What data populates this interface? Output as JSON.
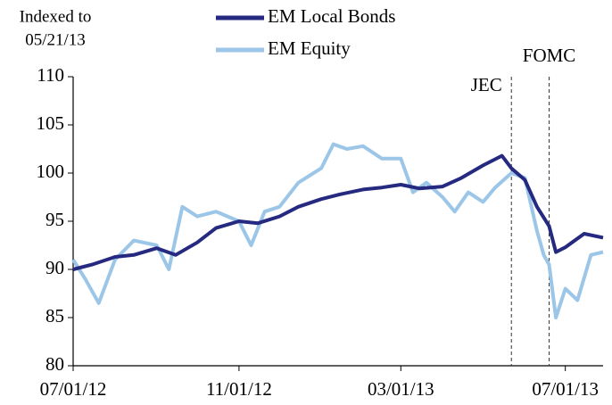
{
  "chart_data": {
    "type": "line",
    "ylabel": [
      "Indexed to",
      "05/21/13"
    ],
    "xlim": [
      "07/01/12",
      "07/29/13"
    ],
    "xticks": [
      "07/01/12",
      "11/01/12",
      "03/01/13",
      "07/01/13"
    ],
    "ylim": [
      80,
      110
    ],
    "yticks": [
      80,
      85,
      90,
      95,
      100,
      105,
      110
    ],
    "legend": "top",
    "annotations": [
      {
        "text": "JEC",
        "x": "05/22/13"
      },
      {
        "text": "FOMC",
        "x": "06/19/13"
      }
    ],
    "series": [
      {
        "name": "EM Local Bonds",
        "color": "#252a80",
        "x": [
          "07/01/12",
          "07/15/12",
          "08/01/12",
          "08/15/12",
          "09/01/12",
          "09/15/12",
          "10/01/12",
          "10/15/12",
          "11/01/12",
          "11/15/12",
          "12/01/12",
          "12/15/12",
          "01/01/13",
          "01/15/13",
          "02/01/13",
          "02/15/13",
          "03/01/13",
          "03/15/13",
          "04/01/13",
          "04/15/13",
          "05/01/13",
          "05/15/13",
          "05/22/13",
          "06/01/13",
          "06/10/13",
          "06/19/13",
          "06/24/13",
          "07/01/13",
          "07/15/13",
          "07/29/13"
        ],
        "values": [
          90,
          90.5,
          91.3,
          91.5,
          92.2,
          91.5,
          92.8,
          94.3,
          95,
          94.8,
          95.5,
          96.5,
          97.3,
          97.8,
          98.3,
          98.5,
          98.8,
          98.4,
          98.6,
          99.5,
          100.8,
          101.8,
          100.5,
          99.3,
          96.5,
          94.5,
          91.8,
          92.3,
          93.7,
          93.3
        ]
      },
      {
        "name": "EM Equity",
        "color": "#9cc6e8",
        "x": [
          "07/01/12",
          "07/10/12",
          "07/20/12",
          "08/01/12",
          "08/15/12",
          "09/01/12",
          "09/10/12",
          "09/20/12",
          "10/01/12",
          "10/15/12",
          "11/01/12",
          "11/10/12",
          "11/20/12",
          "12/01/12",
          "12/15/12",
          "01/01/13",
          "01/10/13",
          "01/20/13",
          "02/01/13",
          "02/15/13",
          "03/01/13",
          "03/10/13",
          "03/20/13",
          "04/01/13",
          "04/10/13",
          "04/20/13",
          "05/01/13",
          "05/10/13",
          "05/22/13",
          "06/01/13",
          "06/10/13",
          "06/15/13",
          "06/19/13",
          "06/24/13",
          "07/01/13",
          "07/10/13",
          "07/20/13",
          "07/29/13"
        ],
        "values": [
          91,
          89,
          86.5,
          91,
          93,
          92.5,
          90,
          96.5,
          95.5,
          96,
          95,
          92.5,
          96,
          96.5,
          99,
          100.5,
          103,
          102.5,
          102.8,
          101.5,
          101.5,
          98,
          99,
          97.5,
          96,
          98,
          97,
          98.5,
          100,
          99.5,
          94,
          91.5,
          90.5,
          85,
          88,
          86.8,
          91.5,
          91.8
        ]
      }
    ]
  }
}
